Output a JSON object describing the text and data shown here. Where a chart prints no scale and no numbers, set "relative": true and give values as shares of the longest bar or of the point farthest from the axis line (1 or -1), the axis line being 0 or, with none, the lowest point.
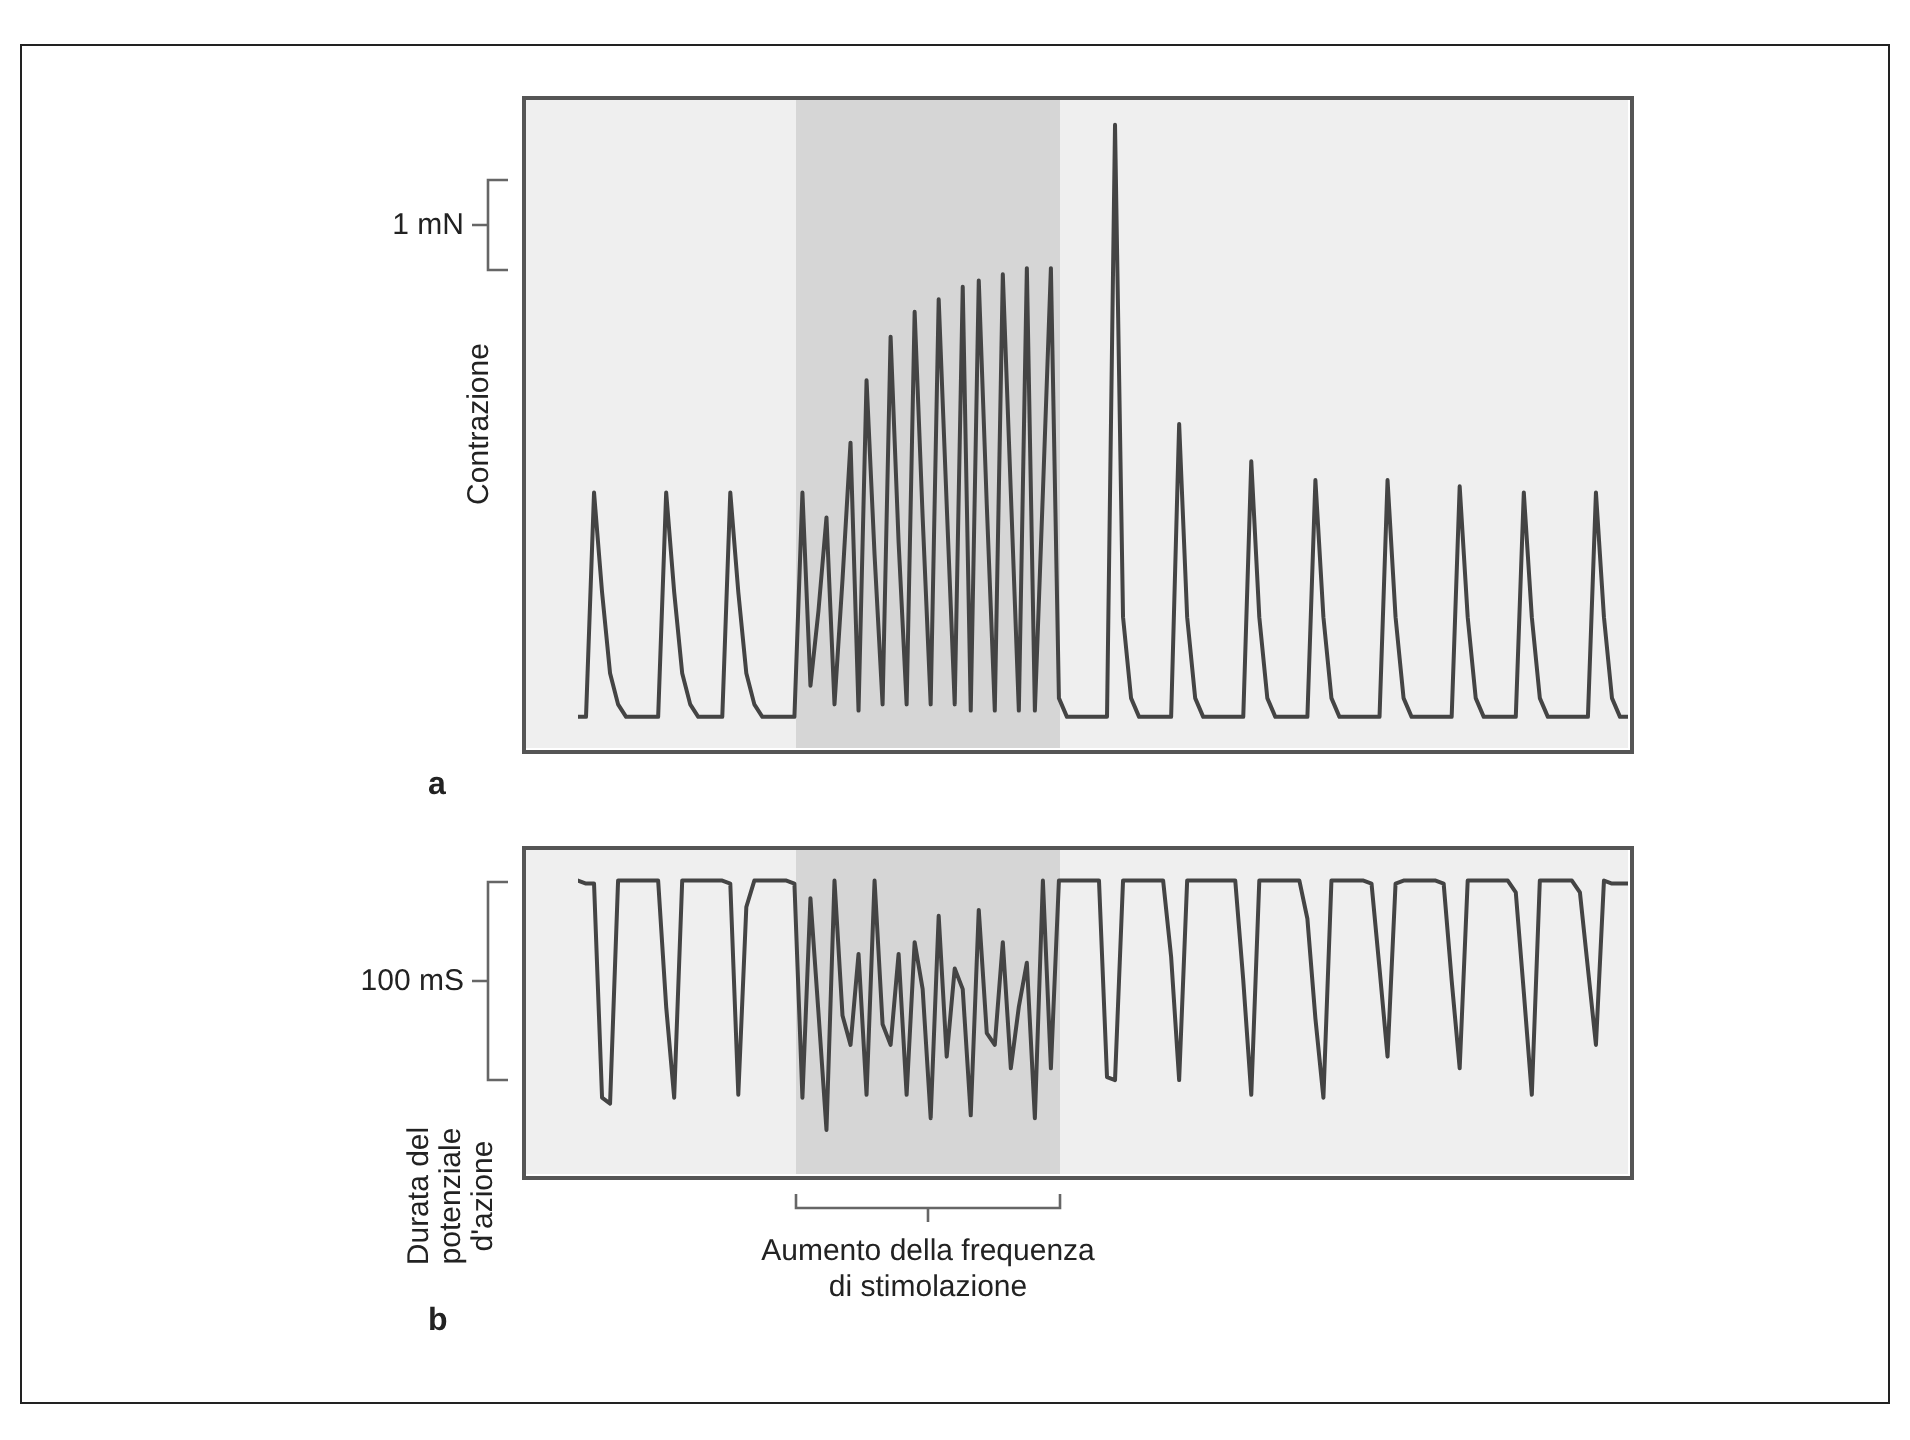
{
  "chart_data": [
    {
      "type": "line",
      "relative": true,
      "ylabel": "Contrazione",
      "annotations": [
        "1 mN",
        "a"
      ],
      "marker": "none",
      "line_style": "solid",
      "categories": [
        null,
        null,
        null,
        null,
        null,
        null,
        null,
        null,
        null,
        null,
        null,
        null,
        null,
        null,
        null,
        null,
        null,
        null,
        null,
        null,
        null,
        null,
        null,
        null,
        null,
        null,
        null,
        null,
        null,
        null,
        null,
        null,
        null,
        null,
        null,
        null,
        null,
        null,
        null,
        null,
        null,
        null,
        null,
        null,
        null,
        null,
        null,
        null,
        null,
        null,
        null,
        null,
        null,
        null,
        null,
        null,
        null,
        null,
        null,
        null,
        null,
        null,
        null,
        null,
        null,
        null,
        null,
        null,
        null,
        null,
        null,
        null,
        null,
        null,
        null,
        null,
        null,
        null,
        null,
        null,
        null,
        null,
        null,
        null,
        null,
        null,
        null,
        null,
        null,
        null,
        null,
        null,
        null,
        null,
        null,
        null,
        null,
        null,
        null,
        null,
        null,
        null,
        null,
        null,
        null,
        null,
        null,
        null,
        null,
        null,
        null,
        null,
        null,
        null,
        null,
        null,
        null,
        null,
        null,
        null,
        null,
        null,
        null,
        null,
        null,
        null,
        null,
        null,
        null,
        null,
        null,
        null
      ],
      "series": [
        {
          "color": "#444444",
          "values": [
            0.05,
            0.05,
            0.41,
            0.25,
            0.12,
            0.07,
            0.05,
            0.05,
            0.05,
            0.05,
            0.05,
            0.41,
            0.25,
            0.12,
            0.07,
            0.05,
            0.05,
            0.05,
            0.05,
            0.41,
            0.25,
            0.12,
            0.07,
            0.05,
            0.05,
            0.05,
            0.05,
            0.05,
            0.41,
            0.1,
            0.22,
            0.37,
            0.07,
            0.27,
            0.49,
            0.06,
            0.59,
            0.31,
            0.07,
            0.66,
            0.33,
            0.07,
            0.7,
            0.37,
            0.07,
            0.72,
            0.39,
            0.07,
            0.74,
            0.06,
            0.75,
            0.39,
            0.06,
            0.76,
            0.41,
            0.06,
            0.77,
            0.06,
            0.41,
            0.77,
            0.08,
            0.05,
            0.05,
            0.05,
            0.05,
            0.05,
            0.05,
            1,
            0.21,
            0.08,
            0.05,
            0.05,
            0.05,
            0.05,
            0.05,
            0.52,
            0.21,
            0.08,
            0.05,
            0.05,
            0.05,
            0.05,
            0.05,
            0.05,
            0.46,
            0.21,
            0.08,
            0.05,
            0.05,
            0.05,
            0.05,
            0.05,
            0.43,
            0.21,
            0.08,
            0.05,
            0.05,
            0.05,
            0.05,
            0.05,
            0.05,
            0.43,
            0.21,
            0.08,
            0.05,
            0.05,
            0.05,
            0.05,
            0.05,
            0.05,
            0.42,
            0.21,
            0.08,
            0.05,
            0.05,
            0.05,
            0.05,
            0.05,
            0.41,
            0.21,
            0.08,
            0.05,
            0.05,
            0.05,
            0.05,
            0.05,
            0.05,
            0.41,
            0.21,
            0.08,
            0.05,
            0.05
          ]
        }
      ]
    },
    {
      "type": "line",
      "relative": true,
      "ylabel": "Durata del potenziale d'azione",
      "annotations": [
        "100 mS",
        "b",
        "Aumento della frequenza di stimolazione"
      ],
      "marker": "none",
      "line_style": "solid",
      "categories": [
        null,
        null,
        null,
        null,
        null,
        null,
        null,
        null,
        null,
        null,
        null,
        null,
        null,
        null,
        null,
        null,
        null,
        null,
        null,
        null,
        null,
        null,
        null,
        null,
        null,
        null,
        null,
        null,
        null,
        null,
        null,
        null,
        null,
        null,
        null,
        null,
        null,
        null,
        null,
        null,
        null,
        null,
        null,
        null,
        null,
        null,
        null,
        null,
        null,
        null,
        null,
        null,
        null,
        null,
        null,
        null,
        null,
        null,
        null,
        null,
        null,
        null,
        null,
        null,
        null,
        null,
        null,
        null,
        null,
        null,
        null,
        null,
        null,
        null,
        null,
        null,
        null,
        null,
        null,
        null,
        null,
        null,
        null,
        null,
        null,
        null,
        null,
        null,
        null,
        null,
        null,
        null,
        null,
        null,
        null,
        null,
        null,
        null,
        null,
        null,
        null,
        null,
        null,
        null,
        null,
        null,
        null,
        null,
        null,
        null,
        null,
        null,
        null,
        null,
        null,
        null,
        null,
        null,
        null,
        null,
        null,
        null,
        null,
        null,
        null,
        null,
        null,
        null,
        null,
        null,
        null,
        null
      ],
      "series": [
        {
          "color": "#444444",
          "values": [
            1,
            0.99,
            0.99,
            0.26,
            0.24,
            1,
            1,
            1,
            1,
            1,
            1,
            0.57,
            0.26,
            1,
            1,
            1,
            1,
            1,
            1,
            0.99,
            0.27,
            0.91,
            1,
            1,
            1,
            1,
            1,
            0.99,
            0.26,
            0.94,
            0.55,
            0.15,
            1,
            0.54,
            0.44,
            0.75,
            0.27,
            1,
            0.51,
            0.44,
            0.75,
            0.27,
            0.79,
            0.63,
            0.19,
            0.88,
            0.4,
            0.7,
            0.63,
            0.2,
            0.9,
            0.48,
            0.44,
            0.79,
            0.36,
            0.57,
            0.72,
            0.19,
            1,
            0.36,
            1,
            1,
            1,
            1,
            1,
            1,
            0.33,
            0.32,
            1,
            1,
            1,
            1,
            1,
            1,
            0.74,
            0.32,
            1,
            1,
            1,
            1,
            1,
            1,
            1,
            0.66,
            0.27,
            1,
            1,
            1,
            1,
            1,
            1,
            0.87,
            0.53,
            0.26,
            1,
            1,
            1,
            1,
            1,
            0.99,
            0.7,
            0.4,
            0.99,
            1,
            1,
            1,
            1,
            1,
            0.99,
            0.66,
            0.36,
            1,
            1,
            1,
            1,
            1,
            1,
            0.96,
            0.62,
            0.27,
            1,
            1,
            1,
            1,
            1,
            0.96,
            0.7,
            0.44,
            1,
            0.99,
            0.99,
            0.99
          ]
        }
      ]
    }
  ]
}
